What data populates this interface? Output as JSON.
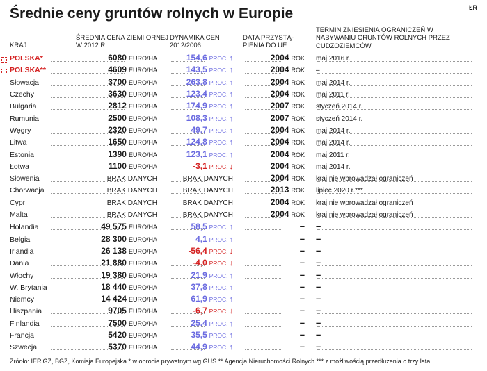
{
  "title": "Średnie ceny gruntów rolnych w Europie",
  "corner": "ŁR",
  "headers": {
    "col1": "KRAJ",
    "col2": "ŚREDNIA CENA ZIEMI ORNEJ  W 2012 R.",
    "col3": "DYNAMIKA CEN 2012/2006",
    "col4": "DATA PRZYSTĄ-\nPIENIA DO UE",
    "col5": "TERMIN ZNIESIENIA OGRANICZEŃ W NABYWANIU GRUNTÓW ROLNYCH PRZEZ CUDZOZIEMCÓW"
  },
  "unit_label": "EURO/HA",
  "proc_label": "PROC.",
  "rok_label": "ROK",
  "nodata": "BRAK DANYCH",
  "rows": [
    {
      "country": "POLSKA*",
      "poland": true,
      "price": "6080",
      "pct": "154,6",
      "dir": "up",
      "year": "2004",
      "note": "maj 2016 r."
    },
    {
      "country": "POLSKA**",
      "poland": true,
      "price": "4609",
      "pct": "143,5",
      "dir": "up",
      "year": "2004",
      "note": "–"
    },
    {
      "country": "Słowacja",
      "price": "3700",
      "pct": "263,8",
      "dir": "up",
      "year": "2004",
      "note": "maj 2014 r."
    },
    {
      "country": "Czechy",
      "price": "3630",
      "pct": "123,4",
      "dir": "up",
      "year": "2004",
      "note": "maj 2011 r."
    },
    {
      "country": "Bułgaria",
      "price": "2812",
      "pct": "174,9",
      "dir": "up",
      "year": "2007",
      "note": "styczeń 2014 r."
    },
    {
      "country": "Rumunia",
      "price": "2500",
      "pct": "108,3",
      "dir": "up",
      "year": "2007",
      "note": "styczeń 2014 r."
    },
    {
      "country": "Węgry",
      "price": "2320",
      "pct": "49,7",
      "dir": "up",
      "year": "2004",
      "note": "maj 2014 r."
    },
    {
      "country": "Litwa",
      "price": "1650",
      "pct": "124,8",
      "dir": "up",
      "year": "2004",
      "note": "maj 2014 r."
    },
    {
      "country": "Estonia",
      "price": "1390",
      "pct": "123,1",
      "dir": "up",
      "year": "2004",
      "note": "maj 2011 r."
    },
    {
      "country": "Łotwa",
      "price": "1100",
      "pct": "-3,1",
      "dir": "down",
      "year": "2004",
      "note": "maj 2014 r."
    },
    {
      "country": "Słowenia",
      "price": null,
      "pct": null,
      "dir": null,
      "year": "2004",
      "note": "kraj nie wprowadzał ograniczeń"
    },
    {
      "country": "Chorwacja",
      "price": null,
      "pct": null,
      "dir": null,
      "year": "2013",
      "note": "lipiec 2020 r.***"
    },
    {
      "country": "Cypr",
      "price": null,
      "pct": null,
      "dir": null,
      "year": "2004",
      "note": "kraj nie wprowadzał ograniczeń"
    },
    {
      "country": "Malta",
      "price": null,
      "pct": null,
      "dir": null,
      "year": "2004",
      "note": "kraj nie wprowadzał ograniczeń"
    },
    {
      "country": "Holandia",
      "price": "49 575",
      "pct": "58,5",
      "dir": "up",
      "year": null,
      "note": null
    },
    {
      "country": "Belgia",
      "price": "28 300",
      "pct": "4,1",
      "dir": "up",
      "year": null,
      "note": null
    },
    {
      "country": "Irlandia",
      "price": "26 138",
      "pct": "-56,4",
      "dir": "down",
      "year": null,
      "note": null
    },
    {
      "country": "Dania",
      "price": "21 880",
      "pct": "-4,0",
      "dir": "down",
      "year": null,
      "note": null
    },
    {
      "country": "Włochy",
      "price": "19 380",
      "pct": "21,9",
      "dir": "up",
      "year": null,
      "note": null
    },
    {
      "country": "W. Brytania",
      "price": "18 440",
      "pct": "37,8",
      "dir": "up",
      "year": null,
      "note": null
    },
    {
      "country": "Niemcy",
      "price": "14 424",
      "pct": "61,9",
      "dir": "up",
      "year": null,
      "note": null
    },
    {
      "country": "Hiszpania",
      "price": "9705",
      "pct": "-6,7",
      "dir": "down",
      "year": null,
      "note": null
    },
    {
      "country": "Finlandia",
      "price": "7500",
      "pct": "25,4",
      "dir": "up",
      "year": null,
      "note": null
    },
    {
      "country": "Francja",
      "price": "5420",
      "pct": "35,5",
      "dir": "up",
      "year": null,
      "note": null
    },
    {
      "country": "Szwecja",
      "price": "5370",
      "pct": "44,9",
      "dir": "up",
      "year": null,
      "note": null
    }
  ],
  "footnote": "Źródło: IERiGŻ, BGŻ, Komisja Europejska    * w obrocie prywatnym wg GUS      ** Agencja Nieruchomości Rolnych     *** z możliwością przedłużenia o trzy lata",
  "colors": {
    "up": "#6a6ae0",
    "down": "#d42020",
    "text": "#1a1a1a",
    "dots": "#999999",
    "background": "#ffffff"
  }
}
